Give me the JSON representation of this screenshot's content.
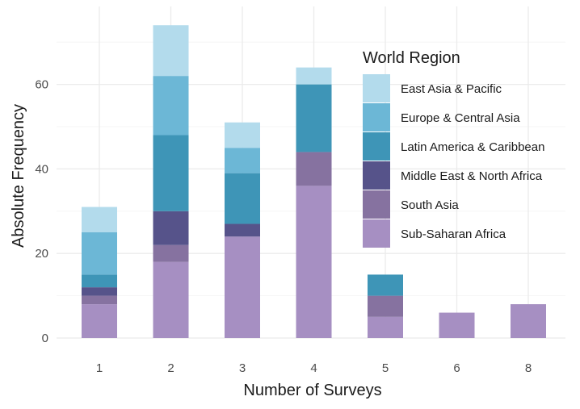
{
  "chart_data": {
    "type": "bar",
    "stacked": true,
    "categories": [
      "1",
      "2",
      "3",
      "4",
      "5",
      "6",
      "8"
    ],
    "series": [
      {
        "name": "Sub-Saharan Africa",
        "values": [
          8,
          18,
          24,
          36,
          5,
          6,
          8
        ]
      },
      {
        "name": "South Asia",
        "values": [
          2,
          4,
          0,
          8,
          5,
          0,
          0
        ]
      },
      {
        "name": "Middle East & North Africa",
        "values": [
          2,
          8,
          3,
          0,
          0,
          0,
          0
        ]
      },
      {
        "name": "Latin America & Caribbean",
        "values": [
          3,
          18,
          12,
          16,
          5,
          0,
          0
        ]
      },
      {
        "name": "Europe & Central Asia",
        "values": [
          10,
          14,
          6,
          0,
          0,
          0,
          0
        ]
      },
      {
        "name": "East Asia & Pacific",
        "values": [
          6,
          12,
          6,
          4,
          0,
          0,
          0
        ]
      }
    ],
    "colors": {
      "East Asia & Pacific": "#b3dbec",
      "Europe & Central Asia": "#6cb7d6",
      "Latin America & Caribbean": "#3e95b7",
      "Middle East & North Africa": "#56538a",
      "South Asia": "#8672a0",
      "Sub-Saharan Africa": "#a68fc2"
    },
    "legend_order": [
      "East Asia & Pacific",
      "Europe & Central Asia",
      "Latin America & Caribbean",
      "Middle East & North Africa",
      "South Asia",
      "Sub-Saharan Africa"
    ],
    "legend_title": "World Region",
    "legend_position": "top-right (inside plot)",
    "xlabel": "Number of Surveys",
    "ylabel": "Absolute Frequency",
    "ylim": [
      0,
      76
    ],
    "yticks": [
      0,
      20,
      40,
      60
    ],
    "grid": true,
    "theme": "minimal"
  }
}
